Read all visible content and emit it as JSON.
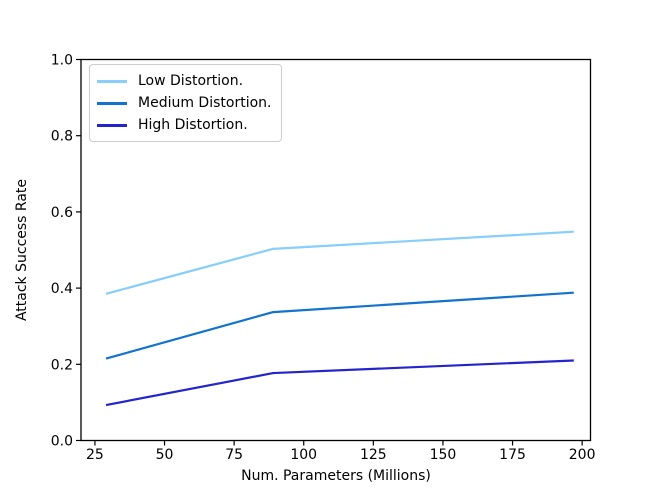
{
  "figure": {
    "background": "#ffffff",
    "text_color": "#000000",
    "spine_color": "#000000"
  },
  "chart_data": {
    "type": "line",
    "title": "",
    "xlabel": "Num. Parameters (Millions)",
    "ylabel": "Attack Success Rate",
    "x": [
      29,
      89,
      197
    ],
    "series": [
      {
        "name": "Low Distortion.",
        "color": "#87CEFA",
        "values": [
          0.385,
          0.503,
          0.548
        ]
      },
      {
        "name": "Medium Distortion.",
        "color": "#1273CD",
        "values": [
          0.215,
          0.337,
          0.388
        ]
      },
      {
        "name": "High Distortion.",
        "color": "#2424CC",
        "values": [
          0.093,
          0.177,
          0.21
        ]
      }
    ],
    "xticks": [
      25,
      50,
      75,
      100,
      125,
      150,
      175,
      200
    ],
    "xtick_labels": [
      "25",
      "50",
      "75",
      "100",
      "125",
      "150",
      "175",
      "200"
    ],
    "yticks": [
      0.0,
      0.2,
      0.4,
      0.6,
      0.8,
      1.0
    ],
    "ytick_labels": [
      "0.0",
      "0.2",
      "0.4",
      "0.6",
      "0.8",
      "1.0"
    ],
    "xlim": [
      20,
      203
    ],
    "ylim": [
      0,
      1
    ],
    "grid": false,
    "legend_position": "upper left"
  }
}
